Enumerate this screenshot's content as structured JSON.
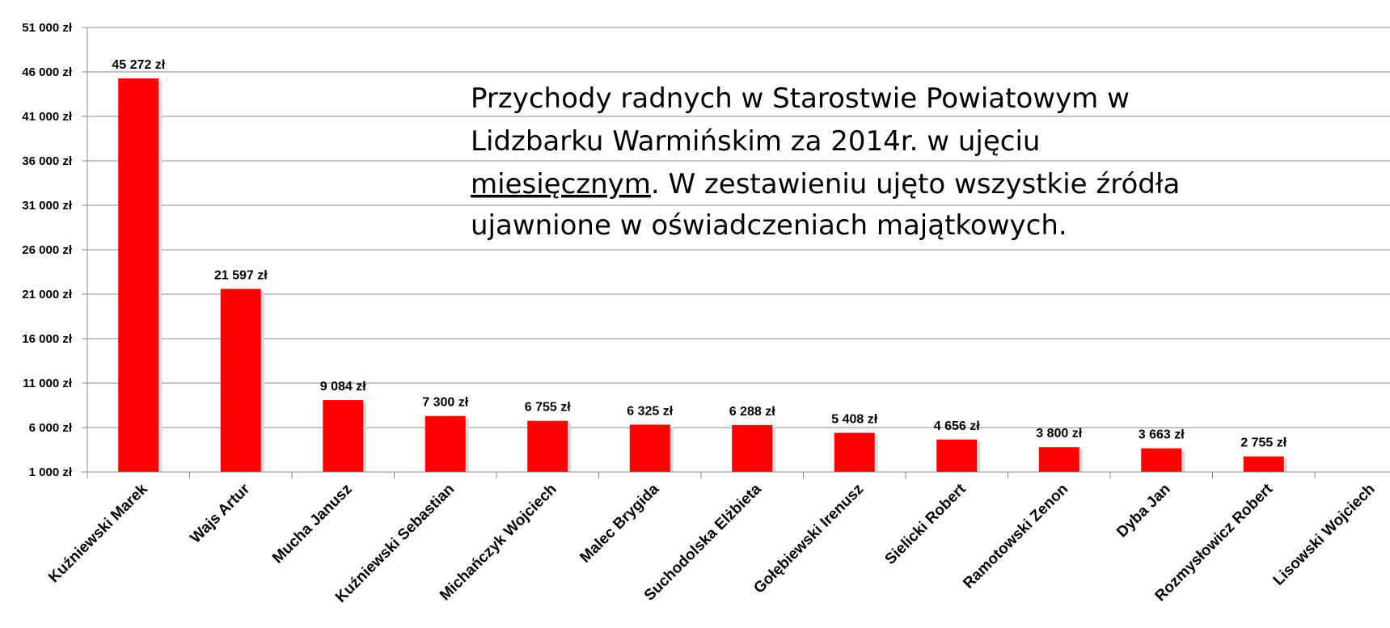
{
  "chart_data": {
    "type": "bar",
    "title_lines": [
      "Przychody radnych w Starostwie Powiatowym w",
      "Lidzbarku Warmińskim za 2014r. w ujęciu",
      "miesięcznym",
      ". W zestawieniu ujęto wszystkie źródła",
      "ujawnione w oświadczeniach majątkowych."
    ],
    "categories": [
      "Kuźniewski Marek",
      "Wajs Artur",
      "Mucha Janusz",
      "Kuźniewski Sebastian",
      "Michańczyk Wojciech",
      "Malec Brygida",
      "Suchodolska Elżbieta",
      "Gołębiewski Irenusz",
      "Sielicki Robert",
      "Ramotowski Zenon",
      "Dyba Jan",
      "Rozmysłowicz Robert",
      "Lisowski Wojciech"
    ],
    "values": [
      45272,
      21597,
      9084,
      7300,
      6755,
      6325,
      6288,
      5408,
      4656,
      3800,
      3663,
      2755,
      0
    ],
    "data_labels": [
      "45 272 zł",
      "21 597 zł",
      "9 084 zł",
      "7 300 zł",
      "6 755 zł",
      "6 325 zł",
      "6 288 zł",
      "5 408 zł",
      "4 656 zł",
      "3 800 zł",
      "3 663 zł",
      "2 755 zł",
      ""
    ],
    "ylim": [
      1000,
      51000
    ],
    "ytick_values": [
      1000,
      6000,
      11000,
      16000,
      21000,
      26000,
      31000,
      36000,
      41000,
      46000,
      51000
    ],
    "ytick_labels": [
      "1 000 zł",
      "6 000 zł",
      "11 000 zł",
      "16 000 zł",
      "21 000 zł",
      "26 000 zł",
      "31 000 zł",
      "36 000 zł",
      "41 000 zł",
      "46 000 zł",
      "51 000 zł"
    ],
    "xlabel": "",
    "ylabel": "",
    "grid": true,
    "legend": "none",
    "colors": {
      "bar": "#ff0000",
      "grid": "#888888",
      "axis": "#888888",
      "text": "#000000"
    }
  }
}
